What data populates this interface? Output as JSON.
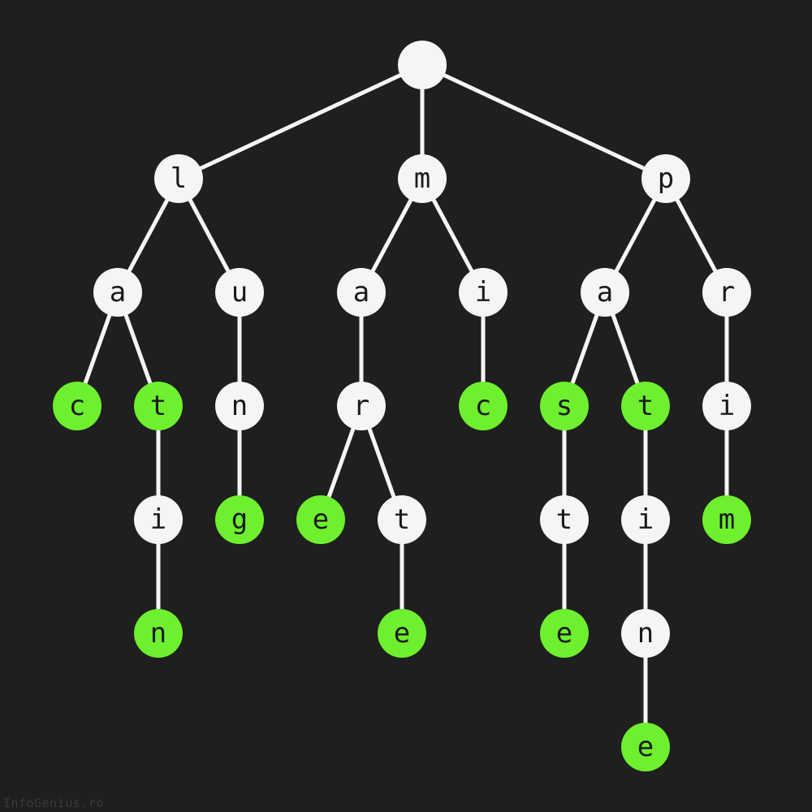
{
  "colors": {
    "background": "#1f1f1f",
    "node_default": "#f5f5f5",
    "node_word_end": "#6ef02e",
    "edge": "#f5f5f5",
    "label": "#1a1a1a"
  },
  "watermark": "InfoGenius.ro",
  "trie": {
    "nodes": [
      {
        "id": "root",
        "label": "",
        "parent": null,
        "end": false
      },
      {
        "id": "l",
        "label": "l",
        "parent": "root",
        "end": false
      },
      {
        "id": "la",
        "label": "a",
        "parent": "l",
        "end": false
      },
      {
        "id": "lac",
        "label": "c",
        "parent": "la",
        "end": true
      },
      {
        "id": "lat",
        "label": "t",
        "parent": "la",
        "end": true
      },
      {
        "id": "lati",
        "label": "i",
        "parent": "lat",
        "end": false
      },
      {
        "id": "latin",
        "label": "n",
        "parent": "lati",
        "end": true
      },
      {
        "id": "lu",
        "label": "u",
        "parent": "l",
        "end": false
      },
      {
        "id": "lun",
        "label": "n",
        "parent": "lu",
        "end": false
      },
      {
        "id": "lung",
        "label": "g",
        "parent": "lun",
        "end": true
      },
      {
        "id": "m",
        "label": "m",
        "parent": "root",
        "end": false
      },
      {
        "id": "ma",
        "label": "a",
        "parent": "m",
        "end": false
      },
      {
        "id": "mar",
        "label": "r",
        "parent": "ma",
        "end": false
      },
      {
        "id": "mare",
        "label": "e",
        "parent": "mar",
        "end": true
      },
      {
        "id": "mart",
        "label": "t",
        "parent": "mar",
        "end": false
      },
      {
        "id": "marte",
        "label": "e",
        "parent": "mart",
        "end": true
      },
      {
        "id": "mi",
        "label": "i",
        "parent": "m",
        "end": false
      },
      {
        "id": "mic",
        "label": "c",
        "parent": "mi",
        "end": true
      },
      {
        "id": "p",
        "label": "p",
        "parent": "root",
        "end": false
      },
      {
        "id": "pa",
        "label": "a",
        "parent": "p",
        "end": false
      },
      {
        "id": "pas",
        "label": "s",
        "parent": "pa",
        "end": true
      },
      {
        "id": "past",
        "label": "t",
        "parent": "pas",
        "end": false
      },
      {
        "id": "paste",
        "label": "e",
        "parent": "past",
        "end": true
      },
      {
        "id": "pat",
        "label": "t",
        "parent": "pa",
        "end": true
      },
      {
        "id": "pati",
        "label": "i",
        "parent": "pat",
        "end": false
      },
      {
        "id": "patin",
        "label": "n",
        "parent": "pati",
        "end": false
      },
      {
        "id": "patine",
        "label": "e",
        "parent": "patin",
        "end": true
      },
      {
        "id": "pr",
        "label": "r",
        "parent": "p",
        "end": false
      },
      {
        "id": "pri",
        "label": "i",
        "parent": "pr",
        "end": false
      },
      {
        "id": "prim",
        "label": "m",
        "parent": "pri",
        "end": true
      }
    ]
  }
}
